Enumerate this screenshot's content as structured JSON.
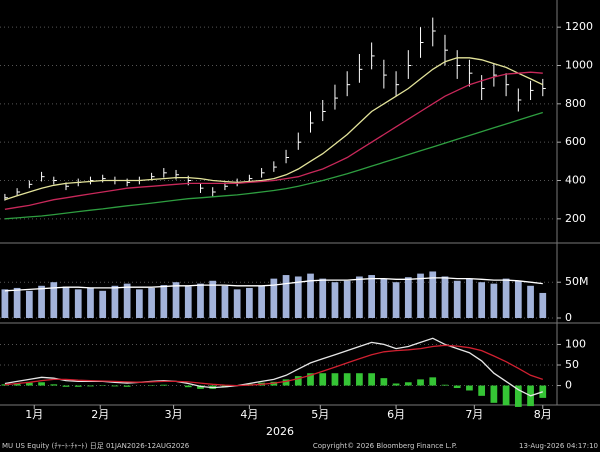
{
  "x_axis": {
    "label": "2026",
    "xlim": [
      0,
      227
    ],
    "xticks": [
      {
        "value": 14,
        "label": "1月"
      },
      {
        "value": 41,
        "label": "2月"
      },
      {
        "value": 71,
        "label": "3月"
      },
      {
        "value": 102,
        "label": "4月"
      },
      {
        "value": 131,
        "label": "5月"
      },
      {
        "value": 162,
        "label": "6月"
      },
      {
        "value": 194,
        "label": "7月"
      },
      {
        "value": 222,
        "label": "8月"
      }
    ],
    "x": [
      2,
      7,
      12,
      17,
      22,
      27,
      32,
      37,
      42,
      47,
      52,
      57,
      62,
      67,
      72,
      77,
      82,
      87,
      92,
      97,
      102,
      107,
      112,
      117,
      122,
      127,
      132,
      137,
      142,
      147,
      152,
      157,
      162,
      167,
      172,
      177,
      182,
      187,
      192,
      197,
      202,
      207,
      212,
      217,
      222
    ]
  },
  "chart_data": [
    {
      "type": "ohlc",
      "ylim": [
        100,
        1300
      ],
      "yticks": [
        200,
        400,
        600,
        800,
        1000,
        1200
      ],
      "grid": true,
      "bar_color": "#ffffff",
      "high": [
        330,
        360,
        400,
        445,
        420,
        390,
        410,
        420,
        430,
        420,
        410,
        420,
        440,
        465,
        455,
        425,
        385,
        365,
        390,
        410,
        430,
        465,
        500,
        560,
        650,
        760,
        820,
        900,
        970,
        1060,
        1120,
        1030,
        970,
        1080,
        1200,
        1250,
        1160,
        1080,
        1030,
        950,
        1010,
        960,
        880,
        920,
        930
      ],
      "low": [
        295,
        320,
        360,
        395,
        380,
        350,
        370,
        380,
        390,
        380,
        370,
        380,
        400,
        415,
        405,
        375,
        335,
        315,
        350,
        370,
        390,
        415,
        445,
        490,
        560,
        650,
        710,
        770,
        840,
        910,
        980,
        880,
        840,
        930,
        1040,
        1100,
        1000,
        930,
        890,
        820,
        890,
        840,
        760,
        820,
        840
      ],
      "close": [
        310,
        340,
        380,
        420,
        400,
        370,
        390,
        400,
        410,
        400,
        390,
        400,
        420,
        440,
        430,
        400,
        360,
        340,
        370,
        390,
        410,
        440,
        470,
        520,
        600,
        700,
        760,
        830,
        900,
        980,
        1050,
        950,
        900,
        1000,
        1120,
        1180,
        1080,
        1000,
        960,
        880,
        950,
        900,
        820,
        870,
        880
      ],
      "series": [
        {
          "color": "#e3e39a",
          "values": [
            300,
            320,
            340,
            360,
            375,
            385,
            390,
            395,
            400,
            400,
            400,
            400,
            405,
            410,
            415,
            415,
            410,
            400,
            395,
            390,
            395,
            400,
            410,
            430,
            460,
            500,
            540,
            590,
            640,
            700,
            760,
            800,
            840,
            880,
            930,
            980,
            1020,
            1040,
            1040,
            1030,
            1010,
            990,
            960,
            930,
            900
          ]
        },
        {
          "color": "#c8285a",
          "values": [
            250,
            260,
            270,
            285,
            300,
            310,
            320,
            330,
            340,
            350,
            360,
            365,
            370,
            375,
            380,
            385,
            385,
            385,
            385,
            385,
            390,
            395,
            400,
            410,
            420,
            440,
            460,
            490,
            520,
            560,
            600,
            640,
            680,
            720,
            760,
            800,
            840,
            870,
            900,
            920,
            940,
            955,
            960,
            965,
            960
          ]
        },
        {
          "color": "#2e9e40",
          "values": [
            200,
            205,
            210,
            215,
            222,
            230,
            238,
            245,
            252,
            260,
            268,
            275,
            282,
            290,
            298,
            305,
            310,
            315,
            320,
            325,
            332,
            340,
            348,
            358,
            370,
            385,
            400,
            418,
            435,
            455,
            475,
            495,
            515,
            535,
            555,
            575,
            595,
            615,
            635,
            655,
            675,
            695,
            715,
            735,
            755
          ]
        }
      ]
    },
    {
      "type": "bar",
      "ylim": [
        0,
        95
      ],
      "yticks": [
        0,
        {
          "value": 50,
          "label": "50M"
        }
      ],
      "grid": true,
      "color": "#a3b3da",
      "values": [
        40,
        42,
        38,
        45,
        50,
        44,
        40,
        42,
        38,
        45,
        48,
        40,
        42,
        46,
        50,
        44,
        48,
        52,
        45,
        40,
        42,
        45,
        55,
        60,
        58,
        62,
        55,
        50,
        52,
        58,
        60,
        55,
        50,
        57,
        62,
        65,
        58,
        52,
        55,
        50,
        48,
        55,
        52,
        45,
        35
      ],
      "series": [
        {
          "color": "#ffffff",
          "values": [
            38,
            39,
            40,
            41,
            42,
            43,
            43,
            42,
            42,
            42,
            43,
            43,
            43,
            44,
            45,
            45,
            46,
            46,
            46,
            45,
            45,
            45,
            46,
            48,
            50,
            52,
            53,
            53,
            53,
            54,
            55,
            55,
            54,
            54,
            55,
            56,
            56,
            55,
            55,
            54,
            53,
            53,
            52,
            50,
            48
          ]
        }
      ]
    },
    {
      "type": "line",
      "ylim": [
        -40,
        140
      ],
      "yticks": [
        0,
        50,
        100
      ],
      "grid": true,
      "histogram": {
        "color": "#35c435",
        "values": [
          3,
          5,
          7,
          8,
          3,
          -3,
          -3,
          -2,
          -1,
          -2,
          -3,
          0,
          1,
          2,
          0,
          -4,
          -8,
          -8,
          -4,
          0,
          4,
          7,
          9,
          15,
          23,
          30,
          30,
          30,
          30,
          30,
          30,
          18,
          5,
          8,
          15,
          20,
          2,
          -6,
          -12,
          -25,
          -42,
          -48,
          -52,
          -50,
          -30
        ]
      },
      "series": [
        {
          "color": "#e6e6e6",
          "values": [
            5,
            10,
            15,
            20,
            18,
            12,
            10,
            10,
            10,
            8,
            6,
            8,
            10,
            12,
            10,
            5,
            -2,
            -5,
            -3,
            0,
            5,
            10,
            15,
            25,
            40,
            55,
            65,
            75,
            85,
            95,
            105,
            100,
            90,
            95,
            105,
            115,
            100,
            90,
            80,
            60,
            30,
            10,
            -10,
            -25,
            -15
          ]
        },
        {
          "color": "#d02030",
          "values": [
            2,
            5,
            8,
            12,
            15,
            15,
            13,
            12,
            11,
            10,
            9,
            8,
            9,
            10,
            10,
            9,
            6,
            3,
            1,
            0,
            1,
            3,
            6,
            10,
            17,
            25,
            35,
            45,
            55,
            65,
            75,
            82,
            85,
            87,
            90,
            95,
            98,
            96,
            92,
            85,
            72,
            58,
            42,
            25,
            15
          ]
        }
      ]
    }
  ],
  "footer": {
    "left": "MU US Equity (ﾁｬｰﾄ-ﾁｬｰﾄ) 日足 01JAN2026-12AUG2026",
    "center": "Copyright© 2026 Bloomberg Finance L.P.",
    "right": "13-Aug-2026 04:17:10"
  }
}
